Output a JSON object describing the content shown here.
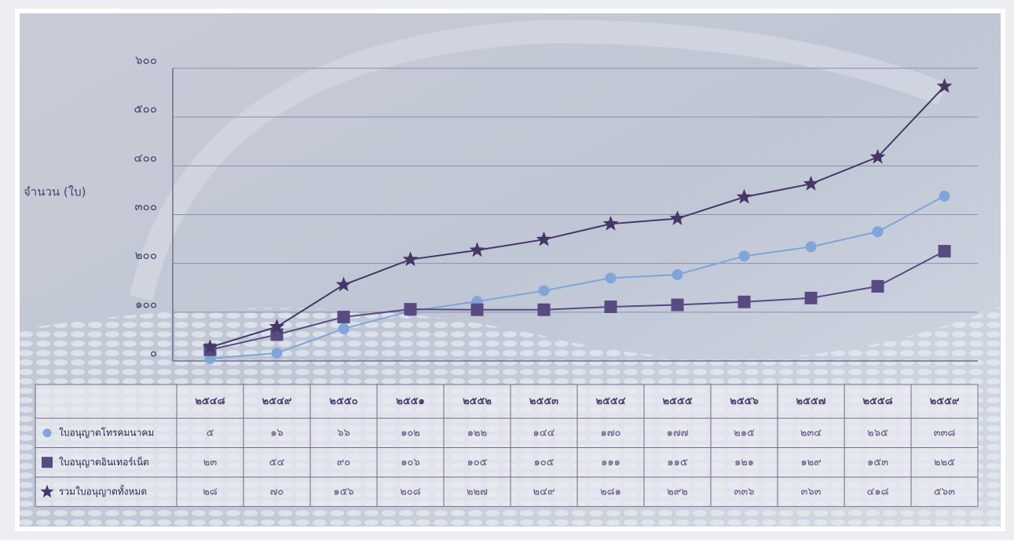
{
  "chart_data": {
    "type": "line",
    "y_label": "จำนวน (ใบ)",
    "categories": [
      "๒๕๔๘",
      "๒๕๔๙",
      "๒๕๕๐",
      "๒๕๕๑",
      "๒๕๕๒",
      "๒๕๕๓",
      "๒๕๕๔",
      "๒๕๕๕",
      "๒๕๕๖",
      "๒๕๕๗",
      "๒๕๕๘",
      "๒๕๕๙"
    ],
    "series": [
      {
        "name": "ใบอนุญาตโทรคมนาคม",
        "color": "#7ea6d9",
        "marker": "circle",
        "values": [
          5,
          16,
          66,
          102,
          122,
          144,
          170,
          177,
          215,
          234,
          265,
          338
        ],
        "value_labels": [
          "๕",
          "๑๖",
          "๖๖",
          "๑๐๒",
          "๑๒๒",
          "๑๔๔",
          "๑๗๐",
          "๑๗๗",
          "๒๑๕",
          "๒๓๔",
          "๒๖๕",
          "๓๓๘"
        ]
      },
      {
        "name": "ใบอนุญาตอินเทอร์เน็ต",
        "color": "#574b82",
        "marker": "square",
        "values": [
          23,
          54,
          90,
          106,
          105,
          105,
          111,
          115,
          121,
          129,
          153,
          225
        ],
        "value_labels": [
          "๒๓",
          "๕๔",
          "๙๐",
          "๑๐๖",
          "๑๐๕",
          "๑๐๕",
          "๑๑๑",
          "๑๑๕",
          "๑๒๑",
          "๑๒๙",
          "๑๕๓",
          "๒๒๕"
        ]
      },
      {
        "name": "รวมใบอนุญาตทั้งหมด",
        "color": "#463768",
        "marker": "star",
        "values": [
          28,
          70,
          156,
          208,
          227,
          249,
          281,
          292,
          336,
          363,
          418,
          563
        ],
        "value_labels": [
          "๒๘",
          "๗๐",
          "๑๕๖",
          "๒๐๘",
          "๒๒๗",
          "๒๔๙",
          "๒๘๑",
          "๒๙๒",
          "๓๓๖",
          "๓๖๓",
          "๔๑๘",
          "๕๖๓"
        ]
      }
    ],
    "ylim": [
      0,
      600
    ],
    "yticks": [
      {
        "value": 0,
        "label": "๐"
      },
      {
        "value": 100,
        "label": "๑๐๐"
      },
      {
        "value": 200,
        "label": "๒๐๐"
      },
      {
        "value": 300,
        "label": "๓๐๐"
      },
      {
        "value": 400,
        "label": "๔๐๐"
      },
      {
        "value": 500,
        "label": "๕๐๐"
      },
      {
        "value": 600,
        "label": "๖๐๐"
      }
    ],
    "grid": true
  }
}
